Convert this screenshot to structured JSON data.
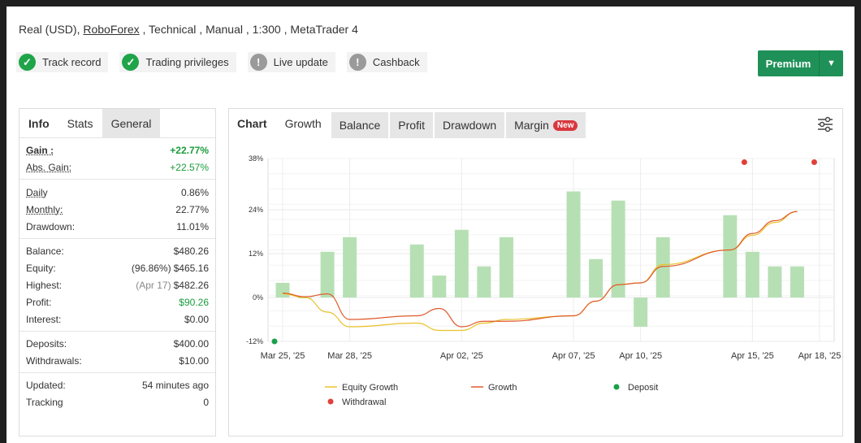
{
  "account": {
    "prefix": "Real (USD),",
    "broker": "RoboForex",
    "suffix": ", Technical , Manual , 1:300 , MetaTrader 4"
  },
  "badges": [
    {
      "label": "Track record",
      "status": "ok"
    },
    {
      "label": "Trading privileges",
      "status": "ok"
    },
    {
      "label": "Live update",
      "status": "warn"
    },
    {
      "label": "Cashback",
      "status": "warn"
    }
  ],
  "premium": {
    "label": "Premium"
  },
  "left_tabs": [
    "Info",
    "Stats",
    "General"
  ],
  "stats": {
    "gain": {
      "label": "Gain :",
      "value": "+22.77%"
    },
    "abs_gain": {
      "label": "Abs. Gain:",
      "value": "+22.57%"
    },
    "daily": {
      "label": "Daily",
      "value": "0.86%"
    },
    "monthly": {
      "label": "Monthly:",
      "value": "22.77%"
    },
    "drawdown": {
      "label": "Drawdown:",
      "value": "11.01%"
    },
    "balance": {
      "label": "Balance:",
      "value": "$480.26"
    },
    "equity": {
      "label": "Equity:",
      "note": "(96.86%)",
      "value": "$465.16"
    },
    "highest": {
      "label": "Highest:",
      "note": "(Apr 17)",
      "value": "$482.26"
    },
    "profit": {
      "label": "Profit:",
      "value": "$90.26"
    },
    "interest": {
      "label": "Interest:",
      "value": "$0.00"
    },
    "deposits": {
      "label": "Deposits:",
      "value": "$400.00"
    },
    "withdrawals": {
      "label": "Withdrawals:",
      "value": "$10.00"
    },
    "updated": {
      "label": "Updated:",
      "value": "54 minutes ago"
    },
    "tracking": {
      "label": "Tracking",
      "value": "0"
    }
  },
  "right_tabs": {
    "title": "Chart",
    "items": [
      "Growth",
      "Balance",
      "Profit",
      "Drawdown",
      "Margin"
    ],
    "new_label": "New"
  },
  "chart_data": {
    "type": "bar",
    "x_dates": [
      "Mar 25",
      "Mar 26",
      "Mar 27",
      "Mar 28",
      "Mar 31",
      "Apr 01",
      "Apr 02",
      "Apr 03",
      "Apr 04",
      "Apr 07",
      "Apr 08",
      "Apr 09",
      "Apr 10",
      "Apr 11",
      "Apr 14",
      "Apr 15",
      "Apr 16",
      "Apr 17"
    ],
    "bar_values": [
      4,
      0,
      12.5,
      16.5,
      14.5,
      6,
      18.5,
      8.5,
      16.5,
      29,
      10.5,
      26.5,
      -8,
      16.5,
      22.5,
      12.5,
      8.5,
      8.5
    ],
    "series": [
      {
        "name": "Equity Growth",
        "color": "#e8c22a",
        "values": [
          1,
          0,
          -4,
          -8,
          -7,
          -9,
          -9,
          -7,
          -6,
          -5,
          -1,
          3.5,
          4,
          9,
          13,
          17,
          20.5,
          23.5
        ]
      },
      {
        "name": "Growth",
        "color": "#e05a2b",
        "values": [
          1.2,
          0.2,
          1,
          -6,
          -5,
          -3,
          -8,
          -6.5,
          -6.5,
          -5,
          -1,
          3.5,
          4,
          8.5,
          13,
          17.5,
          21,
          23.5
        ]
      },
      {
        "name": "Deposit",
        "type": "scatter",
        "color": "#1aa04a",
        "points": [
          [
            "Mar 25",
            -12
          ]
        ]
      },
      {
        "name": "Withdrawal",
        "type": "scatter",
        "color": "#e0403a",
        "points": [
          [
            "Apr 15",
            37
          ],
          [
            "Apr 18",
            37
          ]
        ]
      }
    ],
    "bar_color": "#b6e0b4",
    "ylim": [
      -12,
      38
    ],
    "y_ticks": [
      "38%",
      "24%",
      "12%",
      "0%",
      "-12%"
    ],
    "y_tick_values": [
      38,
      24,
      12,
      0,
      -12
    ],
    "x_ticks": [
      "Mar 25, '25",
      "Mar 28, '25",
      "Apr 02, '25",
      "Apr 07, '25",
      "Apr 10, '25",
      "Apr 15, '25",
      "Apr 18, '25"
    ],
    "legend": [
      "Equity Growth",
      "Growth",
      "Deposit",
      "Withdrawal"
    ],
    "grid": true
  }
}
